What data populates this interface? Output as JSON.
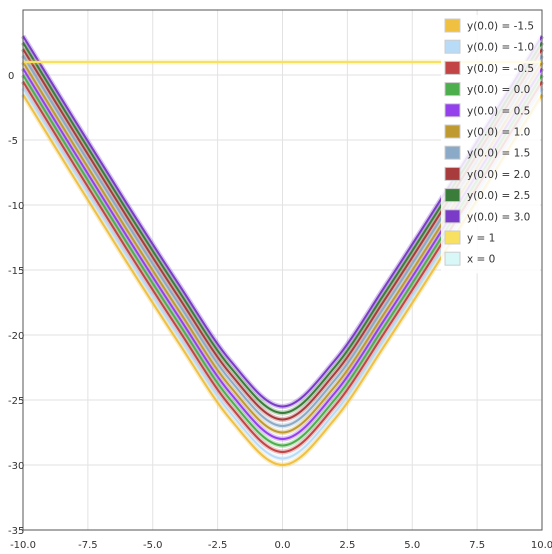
{
  "chart_data": {
    "type": "line",
    "title": "",
    "xlabel": "",
    "ylabel": "",
    "xlim": [
      -10.0,
      10.0
    ],
    "ylim": [
      -35,
      5
    ],
    "grid": true,
    "legend_placement": "top-right",
    "x_ticks": [
      "-10.0",
      "-7.5",
      "-5.0",
      "-2.5",
      "0.0",
      "2.5",
      "5.0",
      "7.5",
      "10.0"
    ],
    "y_ticks": [
      "0",
      "-5",
      "-10",
      "-15",
      "-20",
      "-25",
      "-30",
      "-35"
    ],
    "sample_x": [
      -10,
      -8,
      -6,
      -4,
      -2,
      0,
      2,
      4,
      6,
      8,
      10
    ],
    "series": [
      {
        "name": "y(0.0) = -1.5",
        "color": "#f0c040",
        "values": [
          -1.5,
          -8.0,
          -14.4,
          -20.6,
          -26.5,
          -30.0,
          -26.5,
          -20.6,
          -14.4,
          -8.0,
          -1.5
        ]
      },
      {
        "name": "y(0.0) = -1.0",
        "color": "#b8dcf8",
        "values": [
          -1.0,
          -7.5,
          -13.9,
          -20.1,
          -26.0,
          -29.5,
          -26.0,
          -20.1,
          -13.9,
          -7.5,
          -1.0
        ]
      },
      {
        "name": "y(0.0) = -0.5",
        "color": "#c24444",
        "values": [
          -0.5,
          -7.0,
          -13.4,
          -19.6,
          -25.5,
          -29.0,
          -25.5,
          -19.6,
          -13.4,
          -7.0,
          -0.5
        ]
      },
      {
        "name": "y(0.0) = 0.0",
        "color": "#4cae4c",
        "values": [
          0.0,
          -6.5,
          -12.9,
          -19.1,
          -25.0,
          -28.5,
          -25.0,
          -19.1,
          -12.9,
          -6.5,
          0.0
        ]
      },
      {
        "name": "y(0.0) = 0.5",
        "color": "#9440ed",
        "values": [
          0.5,
          -6.0,
          -12.4,
          -18.6,
          -24.5,
          -28.0,
          -24.5,
          -18.6,
          -12.4,
          -6.0,
          0.5
        ]
      },
      {
        "name": "y(0.0) = 1.0",
        "color": "#bf9a30",
        "values": [
          1.0,
          -5.5,
          -11.9,
          -18.1,
          -24.0,
          -27.5,
          -24.0,
          -18.1,
          -11.9,
          -5.5,
          1.0
        ]
      },
      {
        "name": "y(0.0) = 1.5",
        "color": "#8aaac8",
        "values": [
          1.5,
          -5.0,
          -11.4,
          -17.6,
          -23.5,
          -27.0,
          -23.5,
          -17.6,
          -11.4,
          -5.0,
          1.5
        ]
      },
      {
        "name": "y(0.0) = 2.0",
        "color": "#a83c3c",
        "values": [
          2.0,
          -4.5,
          -10.9,
          -17.1,
          -23.0,
          -26.5,
          -23.0,
          -17.1,
          -10.9,
          -4.5,
          2.0
        ]
      },
      {
        "name": "y(0.0) = 2.5",
        "color": "#3a7d3a",
        "values": [
          2.5,
          -4.0,
          -10.4,
          -16.6,
          -22.5,
          -26.0,
          -22.5,
          -16.6,
          -10.4,
          -4.0,
          2.5
        ]
      },
      {
        "name": "y(0.0) = 3.0",
        "color": "#7a3bc8",
        "values": [
          3.0,
          -3.5,
          -9.9,
          -16.1,
          -22.0,
          -25.5,
          -22.0,
          -16.1,
          -9.9,
          -3.5,
          3.0
        ]
      },
      {
        "name": "y = 1",
        "color": "#f8e060",
        "values": [
          1,
          1,
          1,
          1,
          1,
          1,
          1,
          1,
          1,
          1,
          1
        ]
      },
      {
        "name": "x = 0",
        "color": "#d8f8f8",
        "values": []
      }
    ]
  }
}
